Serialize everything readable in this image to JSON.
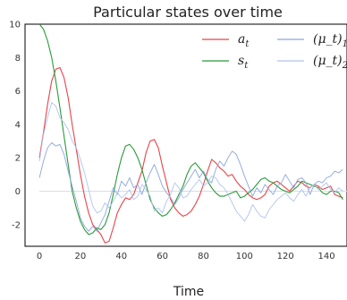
{
  "chart_data": {
    "type": "line",
    "title": "Particular states over time",
    "xlabel": "Time",
    "ylabel": "",
    "xlim": [
      -7,
      150
    ],
    "ylim": [
      -3.3,
      10
    ],
    "xticks": [
      0,
      20,
      40,
      60,
      80,
      100,
      120,
      140
    ],
    "yticks": [
      10,
      8,
      6,
      4,
      2,
      0,
      -2
    ],
    "grid": false,
    "legend": {
      "placement": "top-right",
      "columns": 2
    },
    "series": [
      {
        "name": "a_t",
        "color": "#e8434a",
        "x": [
          0,
          2,
          4,
          6,
          8,
          10,
          12,
          14,
          16,
          18,
          20,
          22,
          24,
          26,
          28,
          30,
          32,
          34,
          36,
          38,
          40,
          42,
          44,
          46,
          48,
          50,
          52,
          54,
          56,
          58,
          60,
          62,
          64,
          66,
          68,
          70,
          72,
          74,
          76,
          78,
          80,
          82,
          84,
          86,
          88,
          90,
          92,
          94,
          96,
          98,
          100,
          102,
          104,
          106,
          108,
          110,
          112,
          114,
          116,
          118,
          120,
          122,
          124,
          126,
          128,
          130,
          132,
          134,
          136,
          138,
          140,
          142,
          144,
          146,
          148
        ],
        "y": [
          2.0,
          3.5,
          5.2,
          6.6,
          7.3,
          7.4,
          6.8,
          5.6,
          4.0,
          2.5,
          1.0,
          -0.3,
          -1.3,
          -2.0,
          -2.3,
          -2.6,
          -3.1,
          -3.0,
          -2.2,
          -1.3,
          -0.8,
          -0.4,
          -0.5,
          -0.2,
          0.5,
          1.2,
          2.3,
          3.0,
          3.1,
          2.6,
          1.5,
          0.5,
          -0.5,
          -1.0,
          -1.3,
          -1.5,
          -1.4,
          -1.2,
          -0.8,
          -0.3,
          0.4,
          1.2,
          1.9,
          1.7,
          1.4,
          1.2,
          0.9,
          1.0,
          0.6,
          0.3,
          0.1,
          -0.2,
          -0.4,
          -0.5,
          -0.4,
          -0.2,
          0.3,
          0.5,
          0.6,
          0.4,
          0.2,
          0.0,
          0.3,
          0.6,
          0.5,
          0.3,
          0.2,
          0.4,
          0.3,
          0.1,
          0.2,
          0.3,
          -0.2,
          -0.3,
          -0.4
        ]
      },
      {
        "name": "s_t",
        "color": "#2a9a3a",
        "x": [
          0,
          2,
          4,
          6,
          8,
          10,
          12,
          14,
          16,
          18,
          20,
          22,
          24,
          26,
          28,
          30,
          32,
          34,
          36,
          38,
          40,
          42,
          44,
          46,
          48,
          50,
          52,
          54,
          56,
          58,
          60,
          62,
          64,
          66,
          68,
          70,
          72,
          74,
          76,
          78,
          80,
          82,
          84,
          86,
          88,
          90,
          92,
          94,
          96,
          98,
          100,
          102,
          104,
          106,
          108,
          110,
          112,
          114,
          116,
          118,
          120,
          122,
          124,
          126,
          128,
          130,
          132,
          134,
          136,
          138,
          140,
          142,
          144,
          146,
          148
        ],
        "y": [
          10.0,
          9.7,
          9.0,
          8.0,
          6.6,
          5.0,
          3.3,
          1.6,
          0.0,
          -1.0,
          -1.8,
          -2.3,
          -2.6,
          -2.5,
          -2.2,
          -2.3,
          -2.0,
          -1.3,
          -0.2,
          1.0,
          2.0,
          2.7,
          2.8,
          2.5,
          2.0,
          1.3,
          0.4,
          -0.5,
          -1.0,
          -1.3,
          -1.5,
          -1.4,
          -1.1,
          -0.7,
          -0.2,
          0.3,
          1.0,
          1.5,
          1.7,
          1.4,
          1.1,
          0.6,
          0.2,
          -0.1,
          -0.3,
          -0.3,
          -0.2,
          -0.1,
          0.0,
          -0.4,
          -0.3,
          -0.1,
          0.1,
          0.4,
          0.7,
          0.8,
          0.6,
          0.5,
          0.3,
          0.1,
          0.0,
          -0.1,
          0.1,
          0.3,
          0.6,
          0.5,
          0.4,
          0.3,
          0.2,
          -0.1,
          -0.2,
          0.0,
          0.0,
          -0.1,
          -0.5
        ]
      },
      {
        "name": "(μ_t)_1",
        "color": "#8aa6dd",
        "x": [
          0,
          2,
          4,
          6,
          8,
          10,
          12,
          14,
          16,
          18,
          20,
          22,
          24,
          26,
          28,
          30,
          32,
          34,
          36,
          38,
          40,
          42,
          44,
          46,
          48,
          50,
          52,
          54,
          56,
          58,
          60,
          62,
          64,
          66,
          68,
          70,
          72,
          74,
          76,
          78,
          80,
          82,
          84,
          86,
          88,
          90,
          92,
          94,
          96,
          98,
          100,
          102,
          104,
          106,
          108,
          110,
          112,
          114,
          116,
          118,
          120,
          122,
          124,
          126,
          128,
          130,
          132,
          134,
          136,
          138,
          140,
          142,
          144,
          146,
          148
        ],
        "y": [
          0.8,
          1.8,
          2.6,
          2.9,
          2.7,
          2.8,
          2.2,
          1.2,
          0.3,
          -0.6,
          -1.6,
          -2.1,
          -2.4,
          -2.1,
          -2.4,
          -1.9,
          -1.4,
          -0.6,
          0.2,
          -0.2,
          0.6,
          0.3,
          0.8,
          0.2,
          0.4,
          -0.2,
          0.5,
          1.1,
          1.6,
          1.0,
          0.3,
          -0.1,
          -0.4,
          -0.8,
          -0.4,
          0.1,
          0.5,
          0.9,
          1.3,
          0.8,
          1.2,
          0.7,
          0.5,
          1.3,
          1.8,
          1.5,
          2.0,
          2.4,
          2.2,
          1.6,
          0.9,
          0.3,
          -0.3,
          0.2,
          -0.1,
          0.4,
          0.1,
          -0.2,
          0.3,
          0.5,
          1.0,
          0.6,
          0.2,
          0.7,
          0.8,
          0.5,
          -0.2,
          0.4,
          0.6,
          0.5,
          0.8,
          0.9,
          1.2,
          1.1,
          1.3
        ]
      },
      {
        "name": "(μ_t)_2",
        "color": "#b0c4ee",
        "x": [
          0,
          2,
          4,
          6,
          8,
          10,
          12,
          14,
          16,
          18,
          20,
          22,
          24,
          26,
          28,
          30,
          32,
          34,
          36,
          38,
          40,
          42,
          44,
          46,
          48,
          50,
          52,
          54,
          56,
          58,
          60,
          62,
          64,
          66,
          68,
          70,
          72,
          74,
          76,
          78,
          80,
          82,
          84,
          86,
          88,
          90,
          92,
          94,
          96,
          98,
          100,
          102,
          104,
          106,
          108,
          110,
          112,
          114,
          116,
          118,
          120,
          122,
          124,
          126,
          128,
          130,
          132,
          134,
          136,
          138,
          140,
          142,
          144,
          146,
          148
        ],
        "y": [
          1.8,
          3.4,
          4.4,
          5.3,
          5.1,
          4.4,
          4.1,
          3.7,
          3.0,
          2.6,
          1.9,
          1.1,
          0.1,
          -0.9,
          -1.3,
          -1.2,
          -0.7,
          -1.0,
          -0.6,
          -0.1,
          -0.4,
          -0.2,
          0.1,
          -0.5,
          -0.3,
          0.4,
          0.1,
          -0.3,
          -1.2,
          -1.0,
          -1.3,
          -0.6,
          -0.2,
          0.5,
          0.2,
          -0.4,
          -0.3,
          0.1,
          0.4,
          0.7,
          0.3,
          0.5,
          0.9,
          0.8,
          0.4,
          0.2,
          -0.2,
          -0.7,
          -1.2,
          -1.5,
          -1.8,
          -1.4,
          -0.8,
          -1.2,
          -1.5,
          -1.6,
          -1.1,
          -0.8,
          -0.5,
          -0.3,
          -0.1,
          -0.4,
          -0.6,
          -0.2,
          0.1,
          -0.3,
          0.2,
          0.4,
          0.1,
          0.3,
          0.5,
          0.1,
          -0.1,
          0.2,
          0.0
        ]
      }
    ]
  }
}
